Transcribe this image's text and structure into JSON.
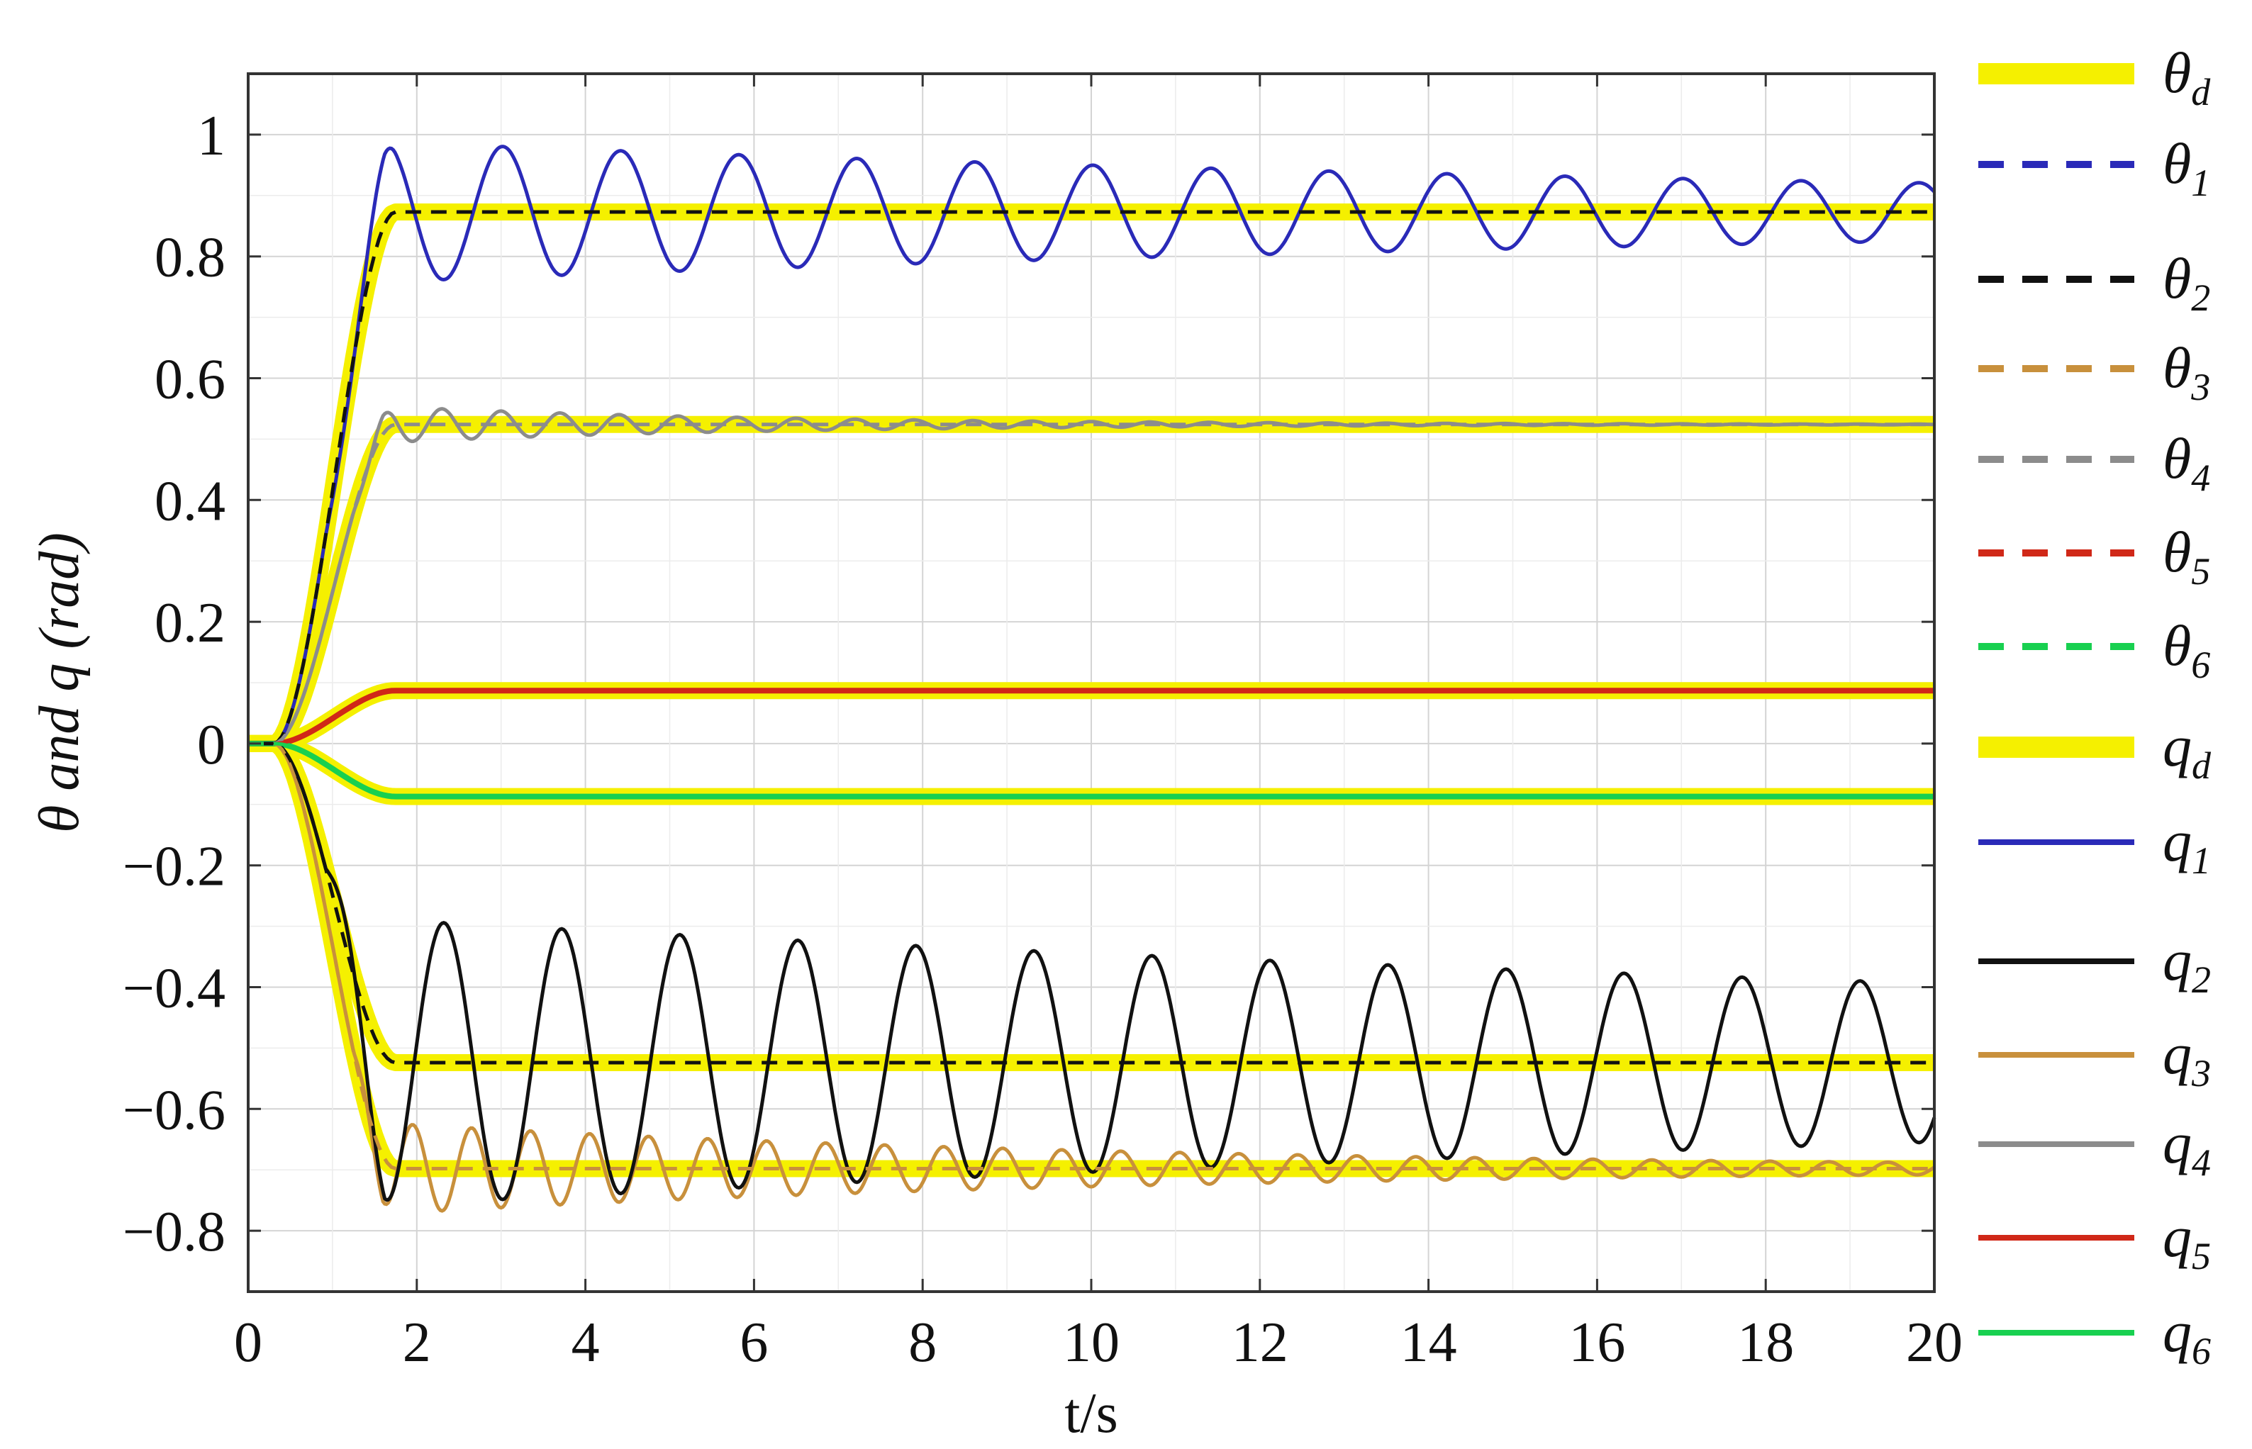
{
  "chart_data": {
    "type": "line",
    "title": "",
    "xlabel": "t/s",
    "ylabel": "θ and q (rad)",
    "xlim": [
      0,
      20
    ],
    "ylim": [
      -0.9,
      1.1
    ],
    "xticks": [
      0,
      2,
      4,
      6,
      8,
      10,
      12,
      14,
      16,
      18,
      20
    ],
    "yticks": [
      -0.8,
      -0.6,
      -0.4,
      -0.2,
      0,
      0.2,
      0.4,
      0.6,
      0.8,
      1
    ],
    "xtick_labels": [
      "0",
      "2",
      "4",
      "6",
      "8",
      "10",
      "12",
      "14",
      "16",
      "18",
      "20"
    ],
    "ytick_labels": [
      "−0.8",
      "−0.6",
      "−0.4",
      "−0.2",
      "0",
      "0.2",
      "0.4",
      "0.6",
      "0.8",
      "1"
    ],
    "grid": true,
    "legend_position": "right outside",
    "series": [
      {
        "name": "θd",
        "label_main": "θ",
        "label_sub": "d",
        "color": "#f5f000",
        "style": "thick",
        "final": [
          0.873,
          0.524,
          -0.524,
          -0.698,
          0.087,
          -0.087
        ],
        "rise": [
          0.3,
          1.75
        ]
      },
      {
        "name": "θ1",
        "label_main": "θ",
        "label_sub": "1",
        "color": "#2a2ab8",
        "style": "dashed",
        "final": 0.873,
        "rise": [
          0.3,
          1.75
        ]
      },
      {
        "name": "θ2",
        "label_main": "θ",
        "label_sub": "2",
        "color": "#111111",
        "style": "dashed",
        "final": -0.524,
        "rise": [
          0.3,
          1.75
        ]
      },
      {
        "name": "θ3",
        "label_main": "θ",
        "label_sub": "3",
        "color": "#c8903c",
        "style": "dashed",
        "final": -0.698,
        "rise": [
          0.3,
          1.75
        ]
      },
      {
        "name": "θ4",
        "label_main": "θ",
        "label_sub": "4",
        "color": "#8c8c8c",
        "style": "dashed",
        "final": 0.524,
        "rise": [
          0.3,
          1.75
        ]
      },
      {
        "name": "θ5",
        "label_main": "θ",
        "label_sub": "5",
        "color": "#d02818",
        "style": "dashed",
        "final": 0.087,
        "rise": [
          0.3,
          1.75
        ]
      },
      {
        "name": "θ6",
        "label_main": "θ",
        "label_sub": "6",
        "color": "#18d050",
        "style": "dashed",
        "final": -0.087,
        "rise": [
          0.3,
          1.75
        ]
      },
      {
        "name": "qd",
        "label_main": "q",
        "label_sub": "d",
        "color": "#f5f000",
        "style": "thick",
        "final": [
          0.873,
          0.524,
          -0.524,
          -0.698,
          0.087,
          -0.087
        ],
        "rise": [
          0.3,
          1.75
        ]
      },
      {
        "name": "q1",
        "label_main": "q",
        "label_sub": "1",
        "color": "#2a2ab8",
        "style": "solid",
        "final": 0.873,
        "rise": [
          0.3,
          1.75
        ],
        "osc_amp": 0.115,
        "osc_decay": 0.048,
        "osc_period": 1.4,
        "osc_peak_t": 1.62
      },
      {
        "name": "q2",
        "label_main": "q",
        "label_sub": "2",
        "color": "#111111",
        "style": "solid",
        "final": -0.524,
        "rise": [
          0.3,
          1.75
        ],
        "osc_amp": 0.235,
        "osc_decay": 0.032,
        "osc_period": 1.4,
        "osc_peak_t": 1.62
      },
      {
        "name": "q3",
        "label_main": "q",
        "label_sub": "3",
        "color": "#c8903c",
        "style": "solid",
        "final": -0.698,
        "rise": [
          0.3,
          1.75
        ],
        "osc_amp": 0.075,
        "osc_decay": 0.11,
        "osc_period": 0.7,
        "osc_peak_t": 1.6
      },
      {
        "name": "q4",
        "label_main": "q",
        "label_sub": "4",
        "color": "#8c8c8c",
        "style": "solid",
        "final": 0.524,
        "rise": [
          0.3,
          1.75
        ],
        "osc_amp": 0.03,
        "osc_decay": 0.22,
        "osc_period": 0.7,
        "osc_peak_t": 1.6
      },
      {
        "name": "q5",
        "label_main": "q",
        "label_sub": "5",
        "color": "#d02818",
        "style": "solid",
        "final": 0.087,
        "rise": [
          0.3,
          1.75
        ]
      },
      {
        "name": "q6",
        "label_main": "q",
        "label_sub": "6",
        "color": "#18d050",
        "style": "solid",
        "final": -0.087,
        "rise": [
          0.3,
          1.75
        ]
      }
    ]
  }
}
